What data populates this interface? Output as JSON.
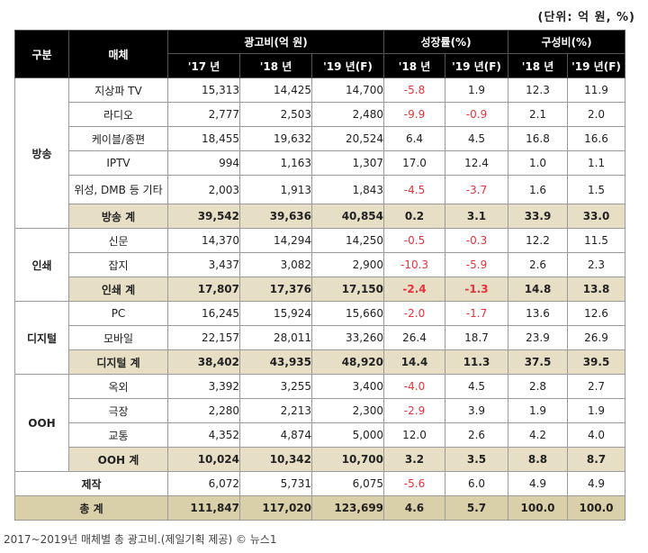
{
  "unit_note": "(단위: 억 원, %)",
  "headers": {
    "category": "구분",
    "media": "매체",
    "ad_spend": "광고비(억 원)",
    "growth": "성장률(%)",
    "share": "구성비(%)",
    "spend_years": [
      "'17 년",
      "'18 년",
      "'19 년(F)"
    ],
    "growth_years": [
      "'18 년",
      "'19 년(F)"
    ],
    "share_years": [
      "'18 년",
      "'19 년(F)"
    ]
  },
  "groups": {
    "broadcast": {
      "name": "방송",
      "rows": [
        {
          "media": "지상파 TV",
          "v17": "15,313",
          "v18": "14,425",
          "v19": "14,700",
          "g18": "-5.8",
          "g19": "1.9",
          "s18": "12.3",
          "s19": "11.9"
        },
        {
          "media": "라디오",
          "v17": "2,777",
          "v18": "2,503",
          "v19": "2,480",
          "g18": "-9.9",
          "g19": "-0.9",
          "s18": "2.1",
          "s19": "2.0"
        },
        {
          "media": "케이블/종편",
          "v17": "18,455",
          "v18": "19,632",
          "v19": "20,524",
          "g18": "6.4",
          "g19": "4.5",
          "s18": "16.8",
          "s19": "16.6"
        },
        {
          "media": "IPTV",
          "v17": "994",
          "v18": "1,163",
          "v19": "1,307",
          "g18": "17.0",
          "g19": "12.4",
          "s18": "1.0",
          "s19": "1.1"
        },
        {
          "media": "위성, DMB 등 기타",
          "v17": "2,003",
          "v18": "1,913",
          "v19": "1,843",
          "g18": "-4.5",
          "g19": "-3.7",
          "s18": "1.6",
          "s19": "1.5"
        }
      ],
      "subtotal": {
        "media": "방송 계",
        "v17": "39,542",
        "v18": "39,636",
        "v19": "40,854",
        "g18": "0.2",
        "g19": "3.1",
        "s18": "33.9",
        "s19": "33.0"
      }
    },
    "print": {
      "name": "인쇄",
      "rows": [
        {
          "media": "신문",
          "v17": "14,370",
          "v18": "14,294",
          "v19": "14,250",
          "g18": "-0.5",
          "g19": "-0.3",
          "s18": "12.2",
          "s19": "11.5"
        },
        {
          "media": "잡지",
          "v17": "3,437",
          "v18": "3,082",
          "v19": "2,900",
          "g18": "-10.3",
          "g19": "-5.9",
          "s18": "2.6",
          "s19": "2.3"
        }
      ],
      "subtotal": {
        "media": "인쇄 계",
        "v17": "17,807",
        "v18": "17,376",
        "v19": "17,150",
        "g18": "-2.4",
        "g19": "-1.3",
        "s18": "14.8",
        "s19": "13.8"
      }
    },
    "digital": {
      "name": "디지털",
      "rows": [
        {
          "media": "PC",
          "v17": "16,245",
          "v18": "15,924",
          "v19": "15,660",
          "g18": "-2.0",
          "g19": "-1.7",
          "s18": "13.6",
          "s19": "12.6"
        },
        {
          "media": "모바일",
          "v17": "22,157",
          "v18": "28,011",
          "v19": "33,260",
          "g18": "26.4",
          "g19": "18.7",
          "s18": "23.9",
          "s19": "26.9"
        }
      ],
      "subtotal": {
        "media": "디지털 계",
        "v17": "38,402",
        "v18": "43,935",
        "v19": "48,920",
        "g18": "14.4",
        "g19": "11.3",
        "s18": "37.5",
        "s19": "39.5"
      }
    },
    "ooh": {
      "name": "OOH",
      "rows": [
        {
          "media": "옥외",
          "v17": "3,392",
          "v18": "3,255",
          "v19": "3,400",
          "g18": "-4.0",
          "g19": "4.5",
          "s18": "2.8",
          "s19": "2.7"
        },
        {
          "media": "극장",
          "v17": "2,280",
          "v18": "2,213",
          "v19": "2,300",
          "g18": "-2.9",
          "g19": "3.9",
          "s18": "1.9",
          "s19": "1.9"
        },
        {
          "media": "교통",
          "v17": "4,352",
          "v18": "4,874",
          "v19": "5,000",
          "g18": "12.0",
          "g19": "2.6",
          "s18": "4.2",
          "s19": "4.0"
        }
      ],
      "subtotal": {
        "media": "OOH 계",
        "v17": "10,024",
        "v18": "10,342",
        "v19": "10,700",
        "g18": "3.2",
        "g19": "3.5",
        "s18": "8.8",
        "s19": "8.7"
      }
    }
  },
  "production": {
    "label": "제작",
    "v17": "6,072",
    "v18": "5,731",
    "v19": "6,075",
    "g18": "-5.6",
    "g19": "6.0",
    "s18": "4.9",
    "s19": "4.9"
  },
  "total": {
    "label": "총 계",
    "v17": "111,847",
    "v18": "117,020",
    "v19": "123,699",
    "g18": "4.6",
    "g19": "5.7",
    "s18": "100.0",
    "s19": "100.0"
  },
  "caption": "2017~2019년 매체별 총 광고비.(제일기획 제공) © 뉴스1"
}
